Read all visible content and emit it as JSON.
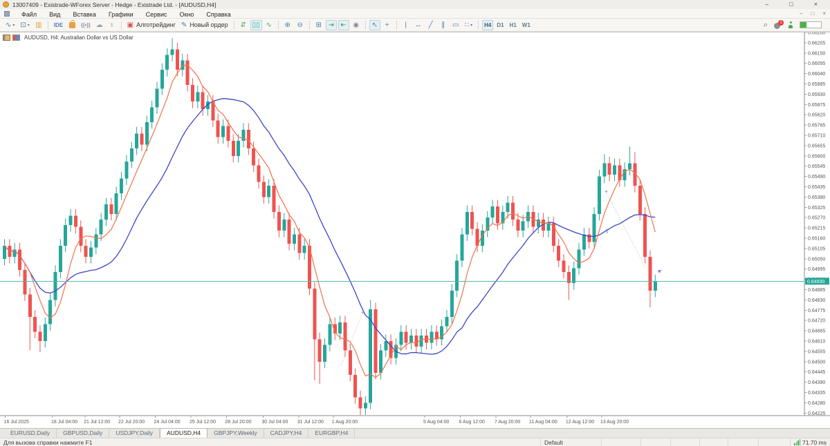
{
  "window": {
    "title": "13007409 - Existrade-WForex Server - Hedge - Existrade Ltd. - [AUDUSD,H4]",
    "controls": {
      "minimize": "–",
      "maximize": "□",
      "close": "×"
    }
  },
  "menu": {
    "items": [
      "Файл",
      "Вид",
      "Вставка",
      "Графики",
      "Сервис",
      "Окно",
      "Справка"
    ]
  },
  "toolbar": {
    "groups": [
      {
        "items": [
          {
            "name": "new-chart-button",
            "glyph": "∿",
            "color": "#4d7fb4",
            "dropdown": true
          },
          {
            "name": "chart-profiles-button",
            "glyph": "⊡",
            "color": "#4d7fb4",
            "dropdown": true
          },
          {
            "name": "toolbox-button",
            "glyph": "▥",
            "color": "#e0a63c"
          }
        ]
      },
      {
        "items": [
          {
            "name": "metaeditor-button",
            "text": "IDE",
            "color": "#4d7fb4"
          },
          {
            "name": "market-button",
            "shape": "bag"
          },
          {
            "name": "signals-button",
            "text": "((•))",
            "color": "#7a8da0"
          },
          {
            "name": "cloud-button",
            "glyph": "☁",
            "color": "#8fa6bd"
          },
          {
            "name": "vps-button",
            "glyph": "♁",
            "color": "#55a868"
          }
        ]
      },
      {
        "items": [
          {
            "name": "algo-trading-button",
            "glyph": "▣",
            "color": "#d9534f",
            "label": "Алготрейдинг"
          },
          {
            "name": "new-order-button",
            "glyph": "✎",
            "color": "#4d7fb4",
            "label": "Новый ордер"
          }
        ]
      },
      {
        "items": [
          {
            "name": "bars-chart-button",
            "glyph": "⇵",
            "color": "#55a868"
          },
          {
            "name": "candles-chart-button",
            "glyph": "▯▯",
            "color": "#2aa198",
            "active": true
          },
          {
            "name": "line-chart-button",
            "glyph": "∿",
            "color": "#55a868"
          }
        ]
      },
      {
        "items": [
          {
            "name": "zoom-in-button",
            "glyph": "⊕",
            "color": "#4d7fb4"
          },
          {
            "name": "zoom-out-button",
            "glyph": "⊖",
            "color": "#4d7fb4"
          }
        ]
      },
      {
        "items": [
          {
            "name": "tile-windows-button",
            "glyph": "⊞",
            "color": "#4d7fb4"
          },
          {
            "name": "auto-scroll-button",
            "glyph": "⇥",
            "color": "#3fa07a",
            "active": true
          },
          {
            "name": "chart-shift-button",
            "glyph": "⇤",
            "color": "#3fa07a",
            "active": true
          },
          {
            "name": "screenshot-button",
            "glyph": "◉",
            "color": "#7a8da0"
          }
        ]
      },
      {
        "items": [
          {
            "name": "cursor-button",
            "glyph": "⇖",
            "color": "#4d7fb4",
            "active": true
          },
          {
            "name": "crosshair-button",
            "glyph": "+",
            "color": "#4d7fb4"
          }
        ]
      },
      {
        "items": [
          {
            "name": "vertical-line-button",
            "glyph": "|",
            "color": "#4d7fb4"
          },
          {
            "name": "horizontal-line-button",
            "glyph": "↔",
            "color": "#4d7fb4"
          },
          {
            "name": "trendline-button",
            "glyph": "╱",
            "color": "#4d7fb4"
          },
          {
            "name": "channel-button",
            "glyph": "∥",
            "color": "#4d7fb4"
          },
          {
            "name": "rectangle-button",
            "glyph": "▭",
            "color": "#4d7fb4"
          },
          {
            "name": "shapes-button",
            "glyph": "∷",
            "color": "#4d7fb4",
            "dropdown": true
          }
        ]
      },
      {
        "items": [
          {
            "name": "timeframe-h4-button",
            "text": "H4",
            "color": "#3a5a74",
            "active": true
          },
          {
            "name": "timeframe-d1-button",
            "text": "D1",
            "color": "#5a7a92"
          },
          {
            "name": "timeframe-h1-button",
            "text": "H1",
            "color": "#5a7a92"
          },
          {
            "name": "timeframe-w1-button",
            "text": "W1",
            "color": "#5a7a92"
          }
        ]
      }
    ],
    "right": {
      "notification_count": "1"
    }
  },
  "chart": {
    "symbol_label": "AUDUSD, H4:  Australian Dollar vs US Dollar"
  },
  "chart_data": {
    "type": "candlestick",
    "symbol": "AUDUSD",
    "timeframe": "H4",
    "title": "AUDUSD, H4: Australian Dollar vs US Dollar",
    "grid": false,
    "price_axis": {
      "max": 0.6626,
      "min": 0.64225,
      "step": 0.00055,
      "decimals": 5
    },
    "time_axis": {
      "labels": [
        "16 Jul 2025",
        "18 Jul 04:00",
        "21 Jul 12:00",
        "22 Jul 20:00",
        "24 Jul 04:00",
        "25 Jul 12:00",
        "28 Jul 20:00",
        "30 Jul 04:00",
        "31 Jul 12:00",
        "1 Aug 20:00",
        "5 Aug 04:00",
        "6 Aug 12:00",
        "7 Aug 20:00",
        "11 Aug 04:00",
        "12 Aug 12:00",
        "13 Aug 20:00"
      ],
      "positions_bar": [
        0.5,
        9.8,
        16.2,
        23,
        30,
        37,
        44,
        51.2,
        58.2,
        65,
        83,
        90,
        97,
        103.8,
        111,
        117.8
      ]
    },
    "current_price": 0.6493,
    "bull_color": "#26a69a",
    "bear_color": "#ef5350",
    "price_line_color": "#56b6ae",
    "first_open": 0.6505,
    "wick_margin": 0.00035,
    "closes": [
      0.6512,
      0.6506,
      0.651,
      0.6499,
      0.6486,
      0.6474,
      0.6466,
      0.6461,
      0.647,
      0.6483,
      0.6498,
      0.6512,
      0.6523,
      0.6528,
      0.6522,
      0.6512,
      0.6506,
      0.6511,
      0.6518,
      0.6526,
      0.6534,
      0.6529,
      0.654,
      0.6548,
      0.6557,
      0.6564,
      0.6572,
      0.6566,
      0.6578,
      0.6586,
      0.6596,
      0.6606,
      0.6614,
      0.6617,
      0.6606,
      0.6611,
      0.6598,
      0.6589,
      0.6594,
      0.6585,
      0.6589,
      0.6579,
      0.657,
      0.6576,
      0.6568,
      0.656,
      0.6568,
      0.6574,
      0.6564,
      0.6555,
      0.6546,
      0.6538,
      0.6544,
      0.653,
      0.652,
      0.6526,
      0.6513,
      0.6518,
      0.6508,
      0.6512,
      0.6489,
      0.6462,
      0.645,
      0.6459,
      0.647,
      0.6465,
      0.6471,
      0.6456,
      0.6443,
      0.6431,
      0.6425,
      0.6428,
      0.6478,
      0.6444,
      0.6456,
      0.6461,
      0.6452,
      0.6459,
      0.6466,
      0.646,
      0.6464,
      0.6458,
      0.6464,
      0.646,
      0.6466,
      0.6462,
      0.6469,
      0.6474,
      0.6488,
      0.6504,
      0.6518,
      0.653,
      0.6521,
      0.6512,
      0.652,
      0.6527,
      0.6533,
      0.6524,
      0.653,
      0.6535,
      0.6526,
      0.652,
      0.6525,
      0.653,
      0.6522,
      0.6526,
      0.652,
      0.6524,
      0.6512,
      0.6504,
      0.6498,
      0.6492,
      0.65,
      0.651,
      0.6518,
      0.6514,
      0.6529,
      0.6549,
      0.6556,
      0.655,
      0.6555,
      0.6547,
      0.6553,
      0.6556,
      0.6544,
      0.6529,
      0.6506,
      0.6488,
      0.6493
    ],
    "high_overrides": {
      "33": 0.6623,
      "34": 0.662,
      "72": 0.6483,
      "118": 0.6561,
      "123": 0.6565,
      "124": 0.6562
    },
    "low_overrides": {
      "5": 0.6456,
      "7": 0.6455,
      "61": 0.644,
      "62": 0.6438,
      "70": 0.64225,
      "71": 0.64235,
      "111": 0.6483,
      "127": 0.6479
    },
    "ma_fast": {
      "period": 6,
      "color": "#f0714a"
    },
    "ma_slow": {
      "period": 18,
      "color": "#3b45c4"
    },
    "objects": {
      "lines": [
        {
          "name": "dotted-trendline-left",
          "color": "#f0a095",
          "from_bar": 66.5,
          "from_price": 0.6448,
          "to_bar": 71,
          "to_price": 0.6477
        },
        {
          "name": "dotted-trendline-right",
          "color": "#9ab0dd",
          "from_bar": 118.6,
          "from_price": 0.6541,
          "to_bar": 126.5,
          "to_price": 0.65
        }
      ],
      "markers": [
        {
          "name": "marker-star-left",
          "glyph": "✳",
          "color": "#5b7fd4",
          "bar": 70.8,
          "price": 0.64765,
          "size": 6
        },
        {
          "name": "marker-star-right",
          "glyph": "✳",
          "color": "#5b7fd4",
          "bar": 118.7,
          "price": 0.6541,
          "size": 6
        },
        {
          "name": "marker-arrow-up",
          "glyph": "⇧",
          "color": "#5b7fd4",
          "bar": 118.9,
          "price": 0.652,
          "size": 9
        },
        {
          "name": "marker-hand",
          "glyph": "☛",
          "color": "#8b7fd0",
          "bar": 129.3,
          "price": 0.64985,
          "size": 8
        }
      ]
    }
  },
  "tabs": {
    "items": [
      "EURUSD,Daily",
      "GBPUSD,Daily",
      "USDJPY,Daily",
      "AUDUSD,H4",
      "GBPJPY,Weekly",
      "CADJPY,H4",
      "EURGBP,H4"
    ],
    "active_index": 3
  },
  "status": {
    "help_text": "Для вызова справки нажмите F1",
    "profile": "Default",
    "latency": "71.70 ms",
    "empty_cell_widths": [
      57,
      43,
      42,
      41,
      44,
      46
    ]
  }
}
